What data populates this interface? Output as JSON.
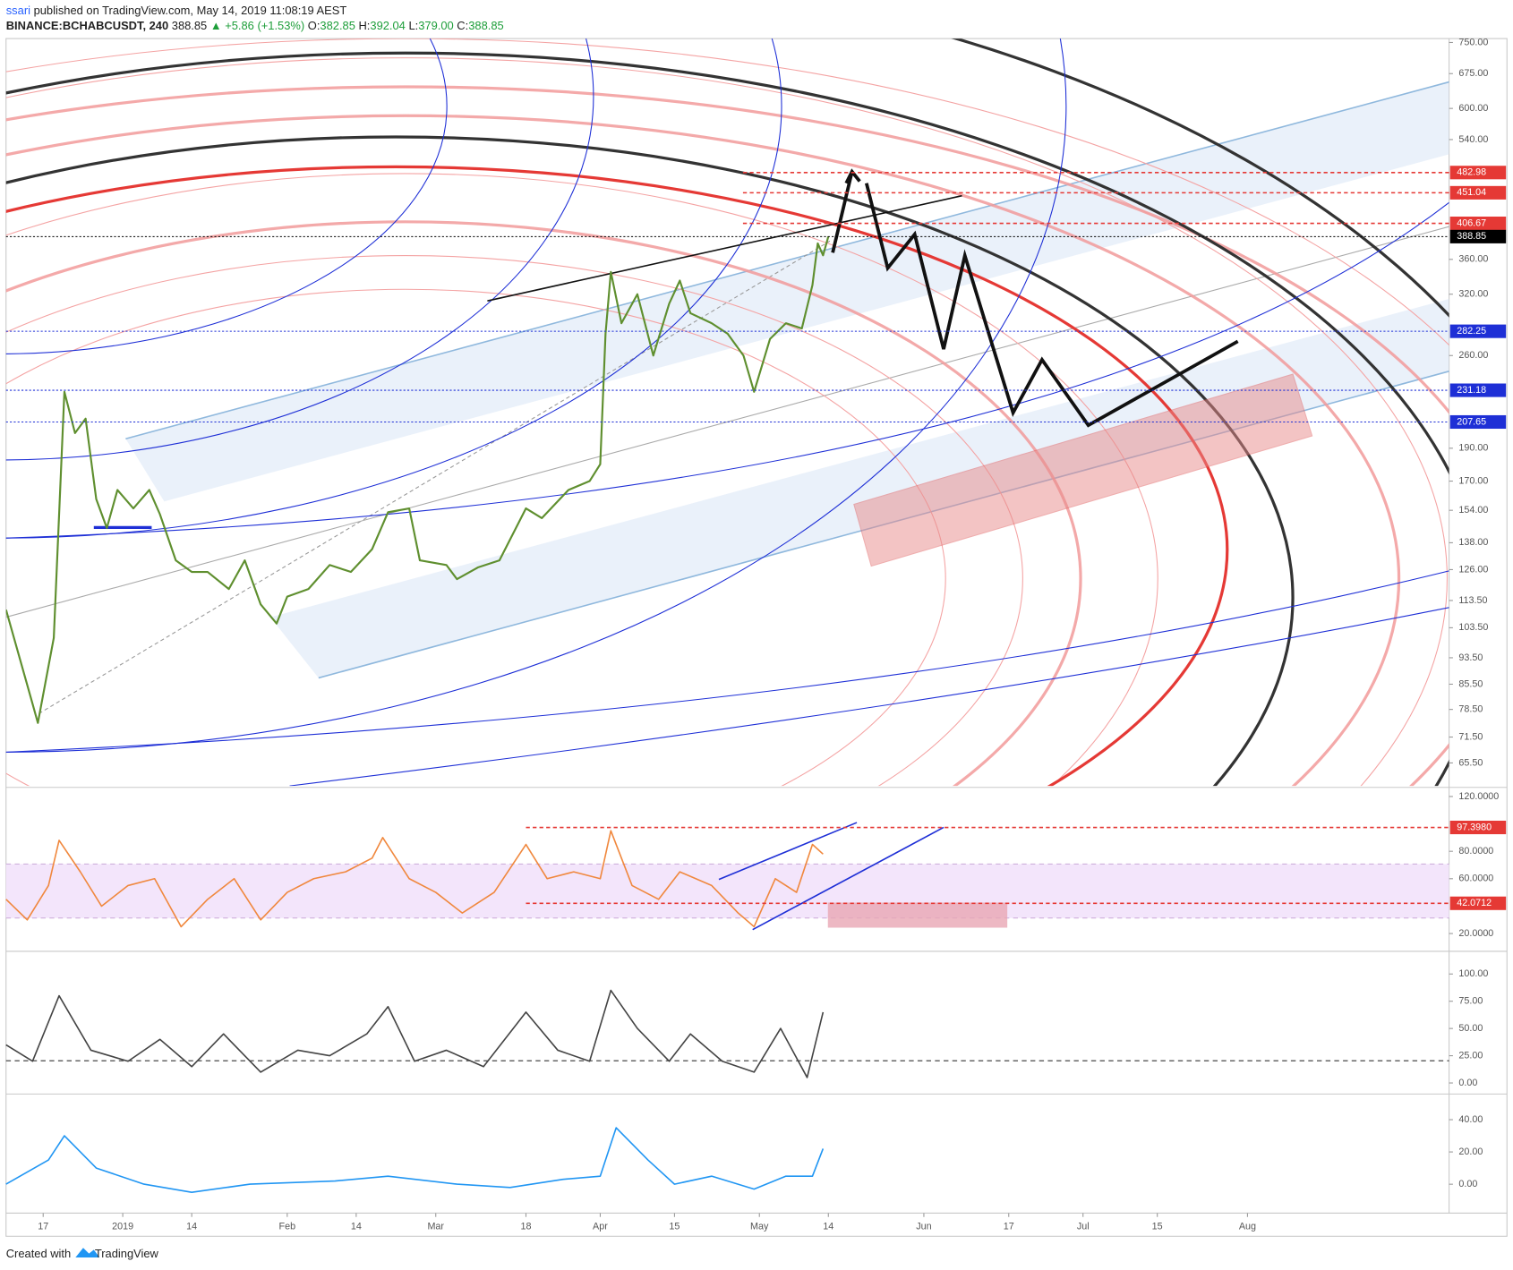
{
  "header": {
    "author": "ssari",
    "published": "published on TradingView.com, May 14, 2019 11:08:19 AEST",
    "symbol": "BINANCE:BCHABCUSDT, 240",
    "last": "388.85",
    "change": "▲ +5.86 (+1.53%)",
    "ohlc": [
      {
        "label": "O:",
        "value": "382.85"
      },
      {
        "label": "H:",
        "value": "392.04"
      },
      {
        "label": "L:",
        "value": "379.00"
      },
      {
        "label": "C:",
        "value": "388.85"
      }
    ]
  },
  "chart_data": [
    {
      "type": "line",
      "log_scale": true,
      "xlim": [
        "2018-12-10",
        "2019-09-08"
      ],
      "xticks": [
        {
          "value": "2018-12-17",
          "label": "17"
        },
        {
          "value": "2019-01-01",
          "label": "2019"
        },
        {
          "value": "2019-01-14",
          "label": "14"
        },
        {
          "value": "2019-02-01",
          "label": "Feb"
        },
        {
          "value": "2019-02-14",
          "label": "14"
        },
        {
          "value": "2019-03-01",
          "label": "Mar"
        },
        {
          "value": "2019-03-18",
          "label": "18"
        },
        {
          "value": "2019-04-01",
          "label": "Apr"
        },
        {
          "value": "2019-04-15",
          "label": "15"
        },
        {
          "value": "2019-05-01",
          "label": "May"
        },
        {
          "value": "2019-05-14",
          "label": "14"
        },
        {
          "value": "2019-06-01",
          "label": "Jun"
        },
        {
          "value": "2019-06-17",
          "label": "17"
        },
        {
          "value": "2019-07-01",
          "label": "Jul"
        },
        {
          "value": "2019-07-15",
          "label": "15"
        },
        {
          "value": "2019-08-01",
          "label": "Aug"
        }
      ],
      "ylim": [
        60.6,
        760
      ],
      "yticks": [
        {
          "value": 750,
          "label": "750.00"
        },
        {
          "value": 675,
          "label": "675.00"
        },
        {
          "value": 600,
          "label": "600.00"
        },
        {
          "value": 540,
          "label": "540.00"
        },
        {
          "value": 360,
          "label": "360.00"
        },
        {
          "value": 320,
          "label": "320.00"
        },
        {
          "value": 260,
          "label": "260.00"
        },
        {
          "value": 190,
          "label": "190.00"
        },
        {
          "value": 170,
          "label": "170.00"
        },
        {
          "value": 154,
          "label": "154.00"
        },
        {
          "value": 138,
          "label": "138.00"
        },
        {
          "value": 126,
          "label": "126.00"
        },
        {
          "value": 113.5,
          "label": "113.50"
        },
        {
          "value": 103.5,
          "label": "103.50"
        },
        {
          "value": 93.5,
          "label": "93.50"
        },
        {
          "value": 85.5,
          "label": "85.50"
        },
        {
          "value": 78.5,
          "label": "78.50"
        },
        {
          "value": 71.5,
          "label": "71.50"
        },
        {
          "value": 65.5,
          "label": "65.50"
        }
      ],
      "price_tags": [
        {
          "value": 482.98,
          "color": "#e53935"
        },
        {
          "value": 451.04,
          "color": "#e53935"
        },
        {
          "value": 406.67,
          "color": "#e53935"
        },
        {
          "value": 388.85,
          "color": "#000000"
        },
        {
          "value": 282.25,
          "color": "#1e2fd6"
        },
        {
          "value": 231.18,
          "color": "#1e2fd6"
        },
        {
          "value": 207.65,
          "color": "#1e2fd6"
        }
      ],
      "x": [
        "2018-12-10",
        "2018-12-15",
        "2018-12-16",
        "2018-12-19",
        "2018-12-21",
        "2018-12-23",
        "2018-12-25",
        "2018-12-27",
        "2018-12-29",
        "2018-12-31",
        "2019-01-03",
        "2019-01-06",
        "2019-01-08",
        "2019-01-11",
        "2019-01-14",
        "2019-01-17",
        "2019-01-21",
        "2019-01-24",
        "2019-01-27",
        "2019-01-30",
        "2019-02-01",
        "2019-02-05",
        "2019-02-09",
        "2019-02-13",
        "2019-02-17",
        "2019-02-20",
        "2019-02-24",
        "2019-02-26",
        "2019-03-03",
        "2019-03-05",
        "2019-03-09",
        "2019-03-13",
        "2019-03-18",
        "2019-03-21",
        "2019-03-26",
        "2019-03-30",
        "2019-04-01",
        "2019-04-02",
        "2019-04-03",
        "2019-04-05",
        "2019-04-08",
        "2019-04-11",
        "2019-04-14",
        "2019-04-16",
        "2019-04-18",
        "2019-04-22",
        "2019-04-25",
        "2019-04-28",
        "2019-04-30",
        "2019-05-03",
        "2019-05-06",
        "2019-05-09",
        "2019-05-11",
        "2019-05-12",
        "2019-05-13",
        "2019-05-14"
      ],
      "series": [
        {
          "color": "#5f8f2f",
          "values": [
            110,
            80,
            75,
            100,
            230,
            200,
            210,
            160,
            145,
            165,
            155,
            165,
            152,
            130,
            125,
            125,
            118,
            130,
            112,
            105,
            115,
            118,
            128,
            125,
            135,
            153,
            155,
            130,
            128,
            122,
            127,
            130,
            155,
            150,
            165,
            170,
            180,
            280,
            345,
            290,
            320,
            260,
            310,
            335,
            300,
            290,
            280,
            260,
            230,
            275,
            290,
            285,
            330,
            380,
            365,
            389
          ]
        }
      ]
    },
    {
      "type": "line",
      "ylim": [
        8.1,
        125.6
      ],
      "yticks": [
        {
          "value": 120,
          "label": "120.0000"
        },
        {
          "value": 80,
          "label": "80.0000"
        },
        {
          "value": 60,
          "label": "60.0000"
        },
        {
          "value": 20,
          "label": "20.0000"
        }
      ],
      "price_tags": [
        {
          "value": 97.398,
          "label": "97.3980",
          "color": "#e53935"
        },
        {
          "value": 42.0712,
          "color": "#e53935"
        }
      ],
      "x": [
        "2018-12-10",
        "2018-12-14",
        "2018-12-18",
        "2018-12-20",
        "2018-12-24",
        "2018-12-28",
        "2019-01-02",
        "2019-01-07",
        "2019-01-12",
        "2019-01-17",
        "2019-01-22",
        "2019-01-27",
        "2019-02-01",
        "2019-02-06",
        "2019-02-12",
        "2019-02-17",
        "2019-02-19",
        "2019-02-24",
        "2019-03-01",
        "2019-03-06",
        "2019-03-12",
        "2019-03-18",
        "2019-03-22",
        "2019-03-27",
        "2019-04-01",
        "2019-04-03",
        "2019-04-07",
        "2019-04-12",
        "2019-04-16",
        "2019-04-22",
        "2019-04-27",
        "2019-04-30",
        "2019-05-04",
        "2019-05-08",
        "2019-05-11",
        "2019-05-13"
      ],
      "series": [
        {
          "color": "#f0883e",
          "values": [
            45,
            30,
            55,
            88,
            65,
            40,
            55,
            60,
            25,
            45,
            60,
            30,
            50,
            60,
            65,
            75,
            90,
            60,
            50,
            35,
            50,
            85,
            60,
            65,
            60,
            95,
            55,
            45,
            65,
            55,
            35,
            25,
            60,
            50,
            85,
            78
          ]
        }
      ]
    },
    {
      "type": "line",
      "ylim": [
        -8.8,
        119.5
      ],
      "yticks": [
        {
          "value": 100,
          "label": "100.00"
        },
        {
          "value": 75,
          "label": "75.00"
        },
        {
          "value": 50,
          "label": "50.00"
        },
        {
          "value": 25,
          "label": "25.00"
        },
        {
          "value": 0,
          "label": "0.00"
        }
      ],
      "x": [
        "2018-12-10",
        "2018-12-15",
        "2018-12-20",
        "2018-12-26",
        "2019-01-02",
        "2019-01-08",
        "2019-01-14",
        "2019-01-20",
        "2019-01-27",
        "2019-02-03",
        "2019-02-09",
        "2019-02-16",
        "2019-02-20",
        "2019-02-25",
        "2019-03-03",
        "2019-03-10",
        "2019-03-18",
        "2019-03-24",
        "2019-03-30",
        "2019-04-03",
        "2019-04-08",
        "2019-04-14",
        "2019-04-18",
        "2019-04-24",
        "2019-04-30",
        "2019-05-05",
        "2019-05-10",
        "2019-05-13"
      ],
      "series": [
        {
          "color": "#444444",
          "values": [
            35,
            20,
            80,
            30,
            20,
            40,
            15,
            45,
            10,
            30,
            25,
            45,
            70,
            20,
            30,
            15,
            65,
            30,
            20,
            85,
            50,
            20,
            45,
            20,
            10,
            50,
            5,
            65
          ]
        }
      ]
    },
    {
      "type": "line",
      "ylim": [
        -17.9,
        55
      ],
      "yticks": [
        {
          "value": 40,
          "label": "40.00"
        },
        {
          "value": 20,
          "label": "20.00"
        },
        {
          "value": 0,
          "label": "0.00"
        }
      ],
      "x": [
        "2018-12-10",
        "2018-12-18",
        "2018-12-21",
        "2018-12-27",
        "2019-01-05",
        "2019-01-14",
        "2019-01-25",
        "2019-02-10",
        "2019-02-20",
        "2019-03-05",
        "2019-03-15",
        "2019-03-25",
        "2019-04-01",
        "2019-04-04",
        "2019-04-10",
        "2019-04-15",
        "2019-04-22",
        "2019-04-30",
        "2019-05-06",
        "2019-05-11",
        "2019-05-13"
      ],
      "series": [
        {
          "color": "#2196f3",
          "values": [
            0,
            15,
            30,
            10,
            0,
            -5,
            0,
            2,
            5,
            0,
            -2,
            3,
            5,
            35,
            15,
            0,
            5,
            -3,
            5,
            5,
            22
          ]
        }
      ]
    }
  ],
  "footer": {
    "text": "Created with",
    "brand": "TradingView"
  }
}
